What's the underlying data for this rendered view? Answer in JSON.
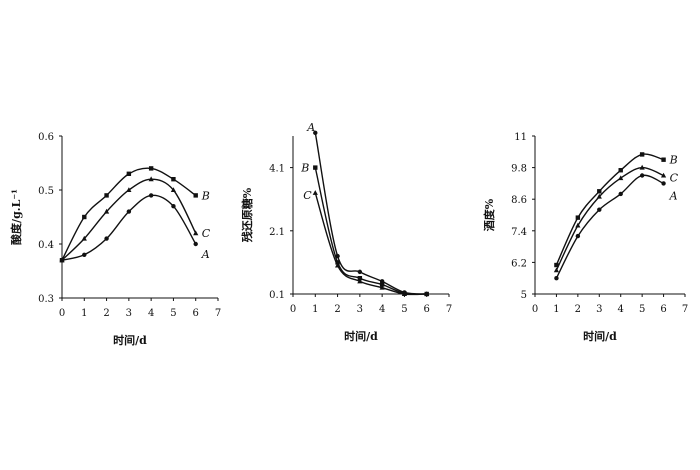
{
  "chart_data": [
    {
      "type": "line",
      "title": "",
      "xlabel": "时间/d",
      "ylabel": "酸度/g.L⁻¹",
      "xlim": [
        0,
        7
      ],
      "ylim": [
        0.3,
        0.6
      ],
      "xticks": [
        "0",
        "1",
        "2",
        "3",
        "4",
        "5",
        "6",
        "7"
      ],
      "yticks": [
        "0.3",
        "0.4",
        "0.5",
        "0.6"
      ],
      "grid": false,
      "series": [
        {
          "name": "A",
          "x": [
            0,
            1,
            2,
            3,
            4,
            5,
            6
          ],
          "y": [
            0.37,
            0.38,
            0.41,
            0.46,
            0.49,
            0.47,
            0.4
          ]
        },
        {
          "name": "B",
          "x": [
            0,
            1,
            2,
            3,
            4,
            5,
            6
          ],
          "y": [
            0.37,
            0.45,
            0.49,
            0.53,
            0.54,
            0.52,
            0.49
          ]
        },
        {
          "name": "C",
          "x": [
            0,
            1,
            2,
            3,
            4,
            5,
            6
          ],
          "y": [
            0.37,
            0.41,
            0.46,
            0.5,
            0.52,
            0.5,
            0.42
          ]
        }
      ]
    },
    {
      "type": "line",
      "title": "",
      "xlabel": "时间/d",
      "ylabel": "残还原糖%",
      "xlim": [
        0,
        7
      ],
      "ylim": [
        0.1,
        5.1
      ],
      "xticks": [
        "0",
        "1",
        "2",
        "3",
        "4",
        "5",
        "6",
        "7"
      ],
      "yticks": [
        "0.1",
        "2.1",
        "4.1"
      ],
      "grid": false,
      "series": [
        {
          "name": "A",
          "x": [
            1,
            2,
            3,
            4,
            5,
            6
          ],
          "y": [
            5.2,
            1.3,
            0.8,
            0.5,
            0.15,
            0.1
          ]
        },
        {
          "name": "B",
          "x": [
            1,
            2,
            3,
            4,
            5,
            6
          ],
          "y": [
            4.1,
            1.1,
            0.6,
            0.4,
            0.12,
            0.1
          ]
        },
        {
          "name": "C",
          "x": [
            1,
            2,
            3,
            4,
            5,
            6
          ],
          "y": [
            3.3,
            1.0,
            0.5,
            0.3,
            0.1,
            0.1
          ]
        }
      ]
    },
    {
      "type": "line",
      "title": "",
      "xlabel": "时间/d",
      "ylabel": "酒度%",
      "xlim": [
        0,
        7
      ],
      "ylim": [
        5,
        11
      ],
      "xticks": [
        "0",
        "1",
        "2",
        "3",
        "4",
        "5",
        "6",
        "7"
      ],
      "yticks": [
        "5",
        "6.2",
        "7.4",
        "8.6",
        "9.8",
        "11"
      ],
      "grid": false,
      "series": [
        {
          "name": "A",
          "x": [
            1,
            2,
            3,
            4,
            5,
            6
          ],
          "y": [
            5.6,
            7.2,
            8.2,
            8.8,
            9.5,
            9.2
          ]
        },
        {
          "name": "B",
          "x": [
            1,
            2,
            3,
            4,
            5,
            6
          ],
          "y": [
            6.1,
            7.9,
            8.9,
            9.7,
            10.3,
            10.1
          ]
        },
        {
          "name": "C",
          "x": [
            1,
            2,
            3,
            4,
            5,
            6
          ],
          "y": [
            5.9,
            7.6,
            8.7,
            9.4,
            9.8,
            9.5
          ]
        }
      ]
    }
  ]
}
